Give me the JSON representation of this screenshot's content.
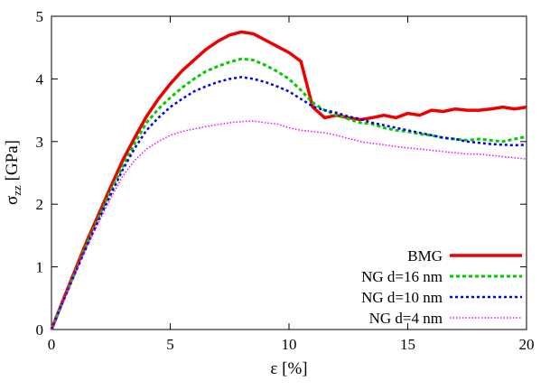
{
  "figure": {
    "background": "#ffffff",
    "border_color": "#000000"
  },
  "chart_data": {
    "type": "line",
    "title": "",
    "xlabel": "ε [%]",
    "ylabel": "σ_zz [GPa]",
    "ylabel_parts": {
      "sym": "σ",
      "sub": "zz",
      "unit": " [GPa]"
    },
    "xlim": [
      0,
      20
    ],
    "ylim": [
      0,
      5
    ],
    "xticks": [
      0,
      5,
      10,
      15,
      20
    ],
    "yticks": [
      0,
      1,
      2,
      3,
      4,
      5
    ],
    "grid": false,
    "legend": {
      "position": "inside-bottom-right"
    },
    "x": [
      0,
      0.5,
      1,
      1.5,
      2,
      2.5,
      3,
      3.5,
      4,
      4.5,
      5,
      5.5,
      6,
      6.5,
      7,
      7.5,
      8,
      8.5,
      9,
      9.5,
      10,
      10.5,
      11,
      11.5,
      12,
      12.5,
      13,
      13.5,
      14,
      14.5,
      15,
      15.5,
      16,
      16.5,
      17,
      17.5,
      18,
      18.5,
      19,
      19.5,
      20
    ],
    "series": [
      {
        "id": "bmg",
        "name": "BMG",
        "color": "#ee0000",
        "width": 3.5,
        "dash": "",
        "values": [
          0,
          0.48,
          0.95,
          1.42,
          1.85,
          2.28,
          2.7,
          3.06,
          3.4,
          3.68,
          3.92,
          4.13,
          4.3,
          4.47,
          4.6,
          4.7,
          4.75,
          4.72,
          4.62,
          4.52,
          4.42,
          4.28,
          3.55,
          3.38,
          3.42,
          3.38,
          3.35,
          3.38,
          3.42,
          3.38,
          3.45,
          3.42,
          3.5,
          3.48,
          3.52,
          3.5,
          3.5,
          3.52,
          3.55,
          3.52,
          3.55
        ]
      },
      {
        "id": "ng16",
        "name": "NG d=16 nm",
        "color": "#00cc00",
        "width": 3,
        "dash": "4 3",
        "values": [
          0,
          0.47,
          0.92,
          1.38,
          1.8,
          2.22,
          2.6,
          2.97,
          3.3,
          3.52,
          3.7,
          3.86,
          4.0,
          4.12,
          4.2,
          4.27,
          4.32,
          4.3,
          4.22,
          4.12,
          4.0,
          3.82,
          3.62,
          3.5,
          3.42,
          3.36,
          3.3,
          3.28,
          3.22,
          3.18,
          3.16,
          3.12,
          3.1,
          3.06,
          3.04,
          3.02,
          3.04,
          3.02,
          3.0,
          3.04,
          3.08
        ]
      },
      {
        "id": "ng10",
        "name": "NG d=10 nm",
        "color": "#0000ee",
        "width": 2.5,
        "dash": "3 3",
        "values": [
          0,
          0.46,
          0.9,
          1.34,
          1.76,
          2.16,
          2.55,
          2.89,
          3.18,
          3.38,
          3.55,
          3.68,
          3.8,
          3.88,
          3.95,
          4.0,
          4.03,
          4.0,
          3.95,
          3.88,
          3.8,
          3.68,
          3.56,
          3.5,
          3.46,
          3.4,
          3.36,
          3.3,
          3.26,
          3.22,
          3.18,
          3.14,
          3.1,
          3.06,
          3.04,
          3.0,
          2.98,
          2.96,
          2.95,
          2.94,
          2.95
        ]
      },
      {
        "id": "ng4",
        "name": "NG d=4 nm",
        "color": "#ff00ff",
        "width": 1.5,
        "dash": "1.5 2",
        "values": [
          0,
          0.46,
          0.9,
          1.32,
          1.72,
          2.1,
          2.45,
          2.7,
          2.88,
          3.0,
          3.1,
          3.16,
          3.2,
          3.24,
          3.27,
          3.3,
          3.32,
          3.33,
          3.3,
          3.28,
          3.22,
          3.18,
          3.16,
          3.14,
          3.1,
          3.05,
          3.0,
          2.97,
          2.95,
          2.92,
          2.9,
          2.88,
          2.86,
          2.84,
          2.82,
          2.8,
          2.8,
          2.78,
          2.76,
          2.74,
          2.72
        ]
      }
    ]
  }
}
